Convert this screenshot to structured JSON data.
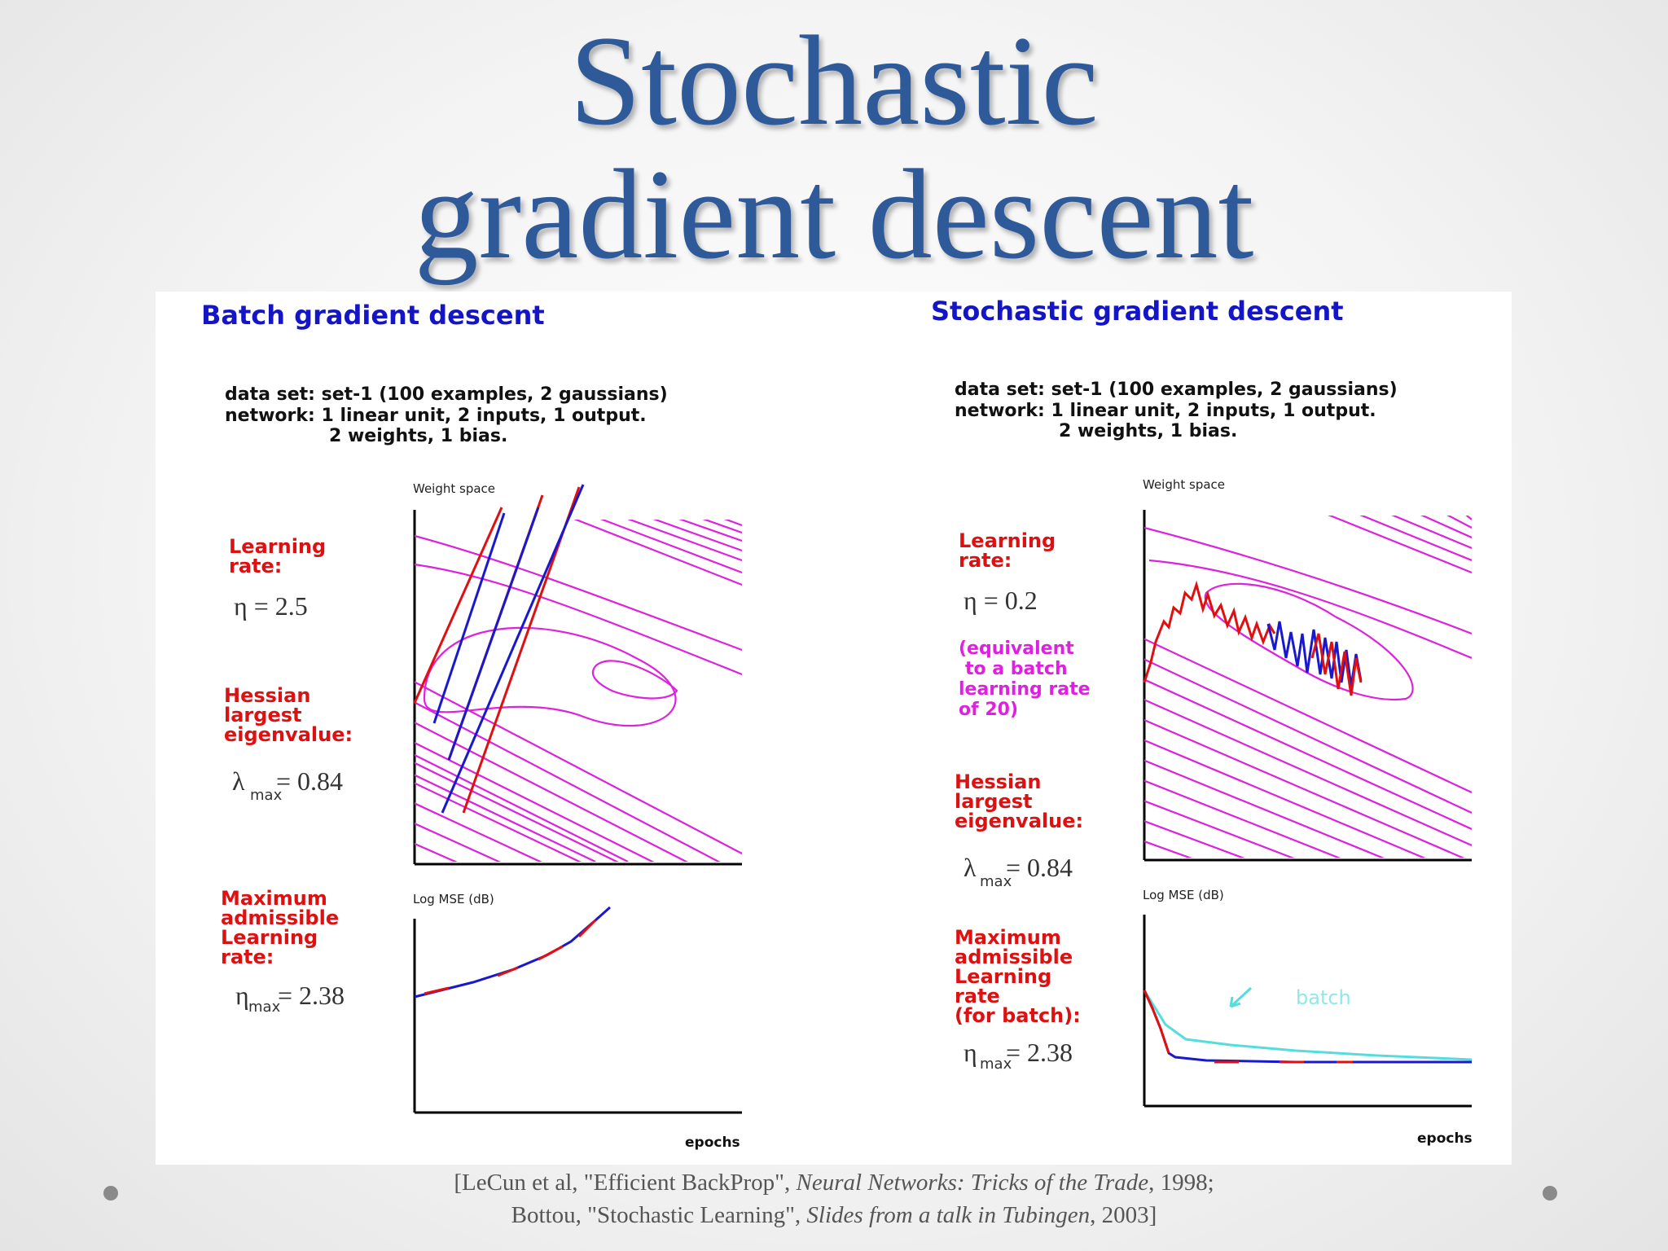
{
  "title": {
    "line1": "Stochastic",
    "line2": "gradient descent"
  },
  "figure": {
    "left": {
      "panel_title": "Batch gradient descent",
      "info": {
        "line1": "data set:  set-1  (100 examples, 2 gaussians)",
        "line2": "network:  1 linear unit, 2 inputs, 1 output.",
        "line3": "2 weights, 1 bias."
      },
      "labels": {
        "lr1": "Learning",
        "lr2": "rate:",
        "eta": "η = 2.5",
        "h1": "Hessian",
        "h2": "largest",
        "h3": "eigenvalue:",
        "lambda_sym": "λ",
        "lambda_sub": "max",
        "lambda_val": "= 0.84",
        "m1": "Maximum",
        "m2": "admissible",
        "m3": "Learning",
        "m4": "rate:",
        "etamax_sym": "η",
        "etamax_sub": "max",
        "etamax_val": "= 2.38"
      },
      "weight_space_label": "Weight space",
      "mse_label": "Log MSE (dB)",
      "epochs_label": "epochs"
    },
    "right": {
      "panel_title": "Stochastic gradient descent",
      "info": {
        "line1": "data set:  set-1  (100 examples, 2 gaussians)",
        "line2": "network:  1 linear unit, 2 inputs, 1 output.",
        "line3": "2 weights, 1 bias."
      },
      "labels": {
        "lr1": "Learning",
        "lr2": "rate:",
        "eta": "η = 0.2",
        "eq1": "(equivalent",
        "eq2": "to a batch",
        "eq3": "learning rate",
        "eq4": "of 20)",
        "h1": "Hessian",
        "h2": "largest",
        "h3": "eigenvalue:",
        "lambda_sym": "λ",
        "lambda_sub": "max",
        "lambda_val": "= 0.84",
        "m1": "Maximum",
        "m2": "admissible",
        "m3": "Learning",
        "m4": "rate",
        "m5": "(for batch):",
        "etamax_sym": "η",
        "etamax_sub": "max",
        "etamax_val": "= 2.38"
      },
      "weight_space_label": "Weight space",
      "mse_label": "Log MSE (dB)",
      "epochs_label": "epochs",
      "batch_label": "batch"
    },
    "colors": {
      "contour": "#dd22dd",
      "path_red": "#e01010",
      "path_blue": "#1818d0",
      "batch_curve": "#55dddd"
    }
  },
  "citation": {
    "l1_a": "[LeCun et al, \"Efficient BackProp\", ",
    "l1_b": "Neural Networks: Tricks of the Trade",
    "l1_c": ", 1998;",
    "l2_a": "Bottou, \"Stochastic Learning\", ",
    "l2_b": "Slides from a talk in Tubingen",
    "l2_c": ", 2003]"
  },
  "bullets": [
    "bullet-left",
    "bullet-right"
  ],
  "theme": {
    "title_color": "#2f5a9a",
    "panel_bg": "#ffffff"
  }
}
